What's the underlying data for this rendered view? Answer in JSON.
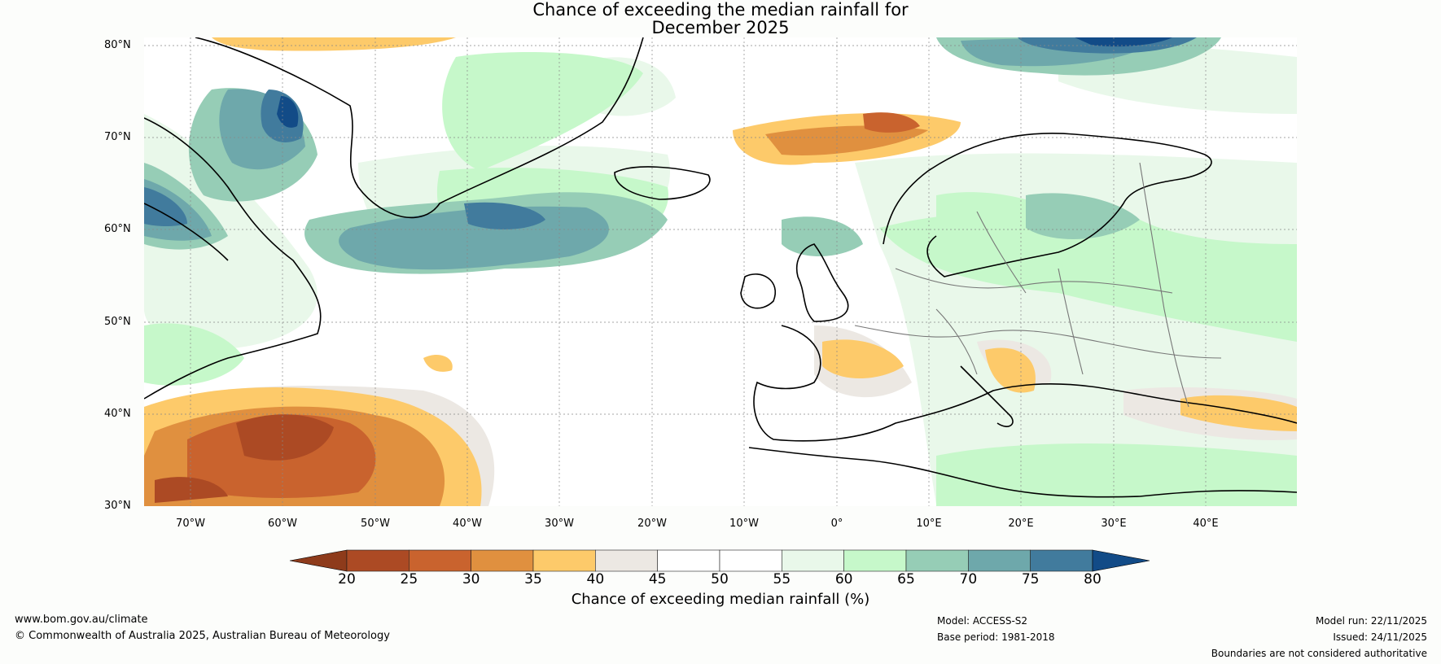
{
  "title": {
    "line1": "Chance of exceeding the median rainfall for",
    "line2": "December 2025"
  },
  "axes": {
    "lat_labels": [
      "80°N",
      "70°N",
      "60°N",
      "50°N",
      "40°N",
      "30°N"
    ],
    "lon_labels": [
      "70°W",
      "60°W",
      "50°W",
      "40°W",
      "30°W",
      "20°W",
      "10°W",
      "0°",
      "10°E",
      "20°E",
      "30°E",
      "40°E"
    ],
    "lat_range": [
      30,
      80
    ],
    "lon_range": [
      -75,
      50
    ]
  },
  "colorbar": {
    "ticks": [
      "20",
      "25",
      "30",
      "35",
      "40",
      "45",
      "50",
      "55",
      "60",
      "65",
      "70",
      "75",
      "80"
    ],
    "colors": [
      "#8e3b1b",
      "#ac4a24",
      "#c9632e",
      "#e0903f",
      "#fdca6a",
      "#ece8e3",
      "#ffffff",
      "#ffffff",
      "#e9f8ea",
      "#c6f8ca",
      "#96cdb6",
      "#6ea8ab",
      "#417b9d",
      "#124b87"
    ],
    "label": "Chance of exceeding median rainfall (%)"
  },
  "footer": {
    "website": "www.bom.gov.au/climate",
    "copyright": "© Commonwealth of Australia 2025, Australian Bureau of Meteorology",
    "model": "Model: ACCESS-S2",
    "base_period": "Base period: 1981-2018",
    "model_run": "Model run: 22/11/2025",
    "issued": "Issued: 24/11/2025",
    "disclaimer": "Boundaries are not considered authoritative"
  }
}
